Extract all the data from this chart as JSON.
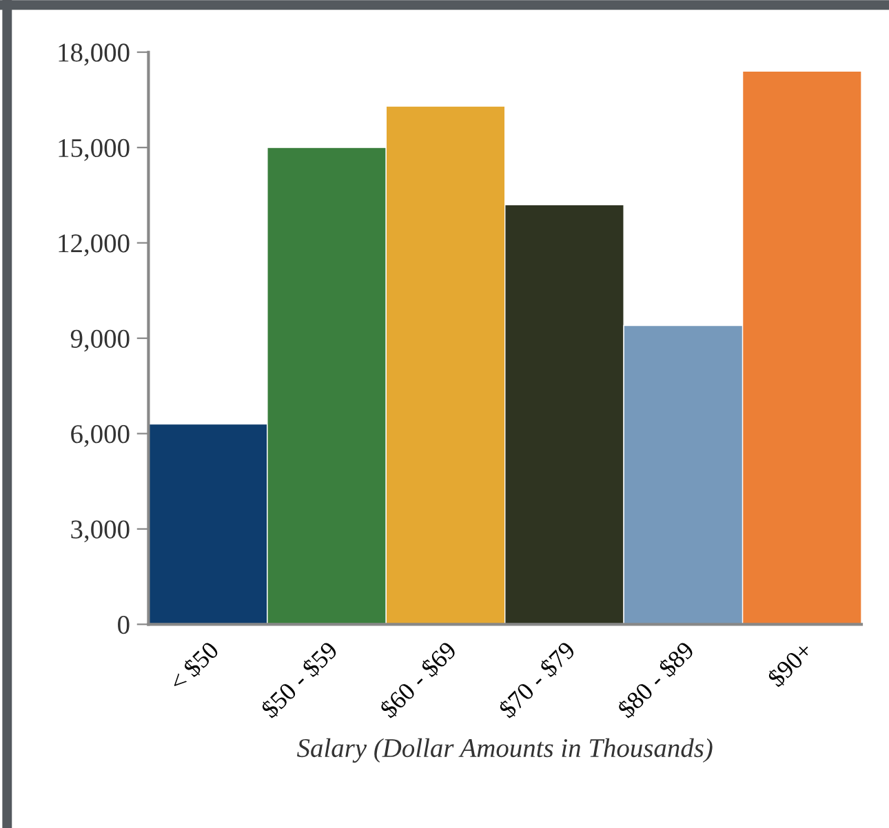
{
  "chart_data": {
    "type": "bar",
    "xlabel": "Salary (Dollar Amounts in Thousands)",
    "categories": [
      "< $50",
      "$50 - $59",
      "$60 - $69",
      "$70 - $79",
      "$80 - $89",
      "$90+"
    ],
    "values": [
      6300,
      15000,
      16300,
      13200,
      9400,
      17400
    ],
    "colors": [
      "#0e3d6e",
      "#3b7f3e",
      "#e4a832",
      "#2f3421",
      "#7699bb",
      "#ec7f36"
    ],
    "ylim": [
      0,
      18000
    ],
    "yticks": [
      {
        "value": 0,
        "label": "0"
      },
      {
        "value": 3000,
        "label": "3,000"
      },
      {
        "value": 6000,
        "label": "6,000"
      },
      {
        "value": 9000,
        "label": "9,000"
      },
      {
        "value": 12000,
        "label": "12,000"
      },
      {
        "value": 15000,
        "label": "15,000"
      },
      {
        "value": 18000,
        "label": "18,000"
      }
    ],
    "grid": false,
    "legend": false
  }
}
